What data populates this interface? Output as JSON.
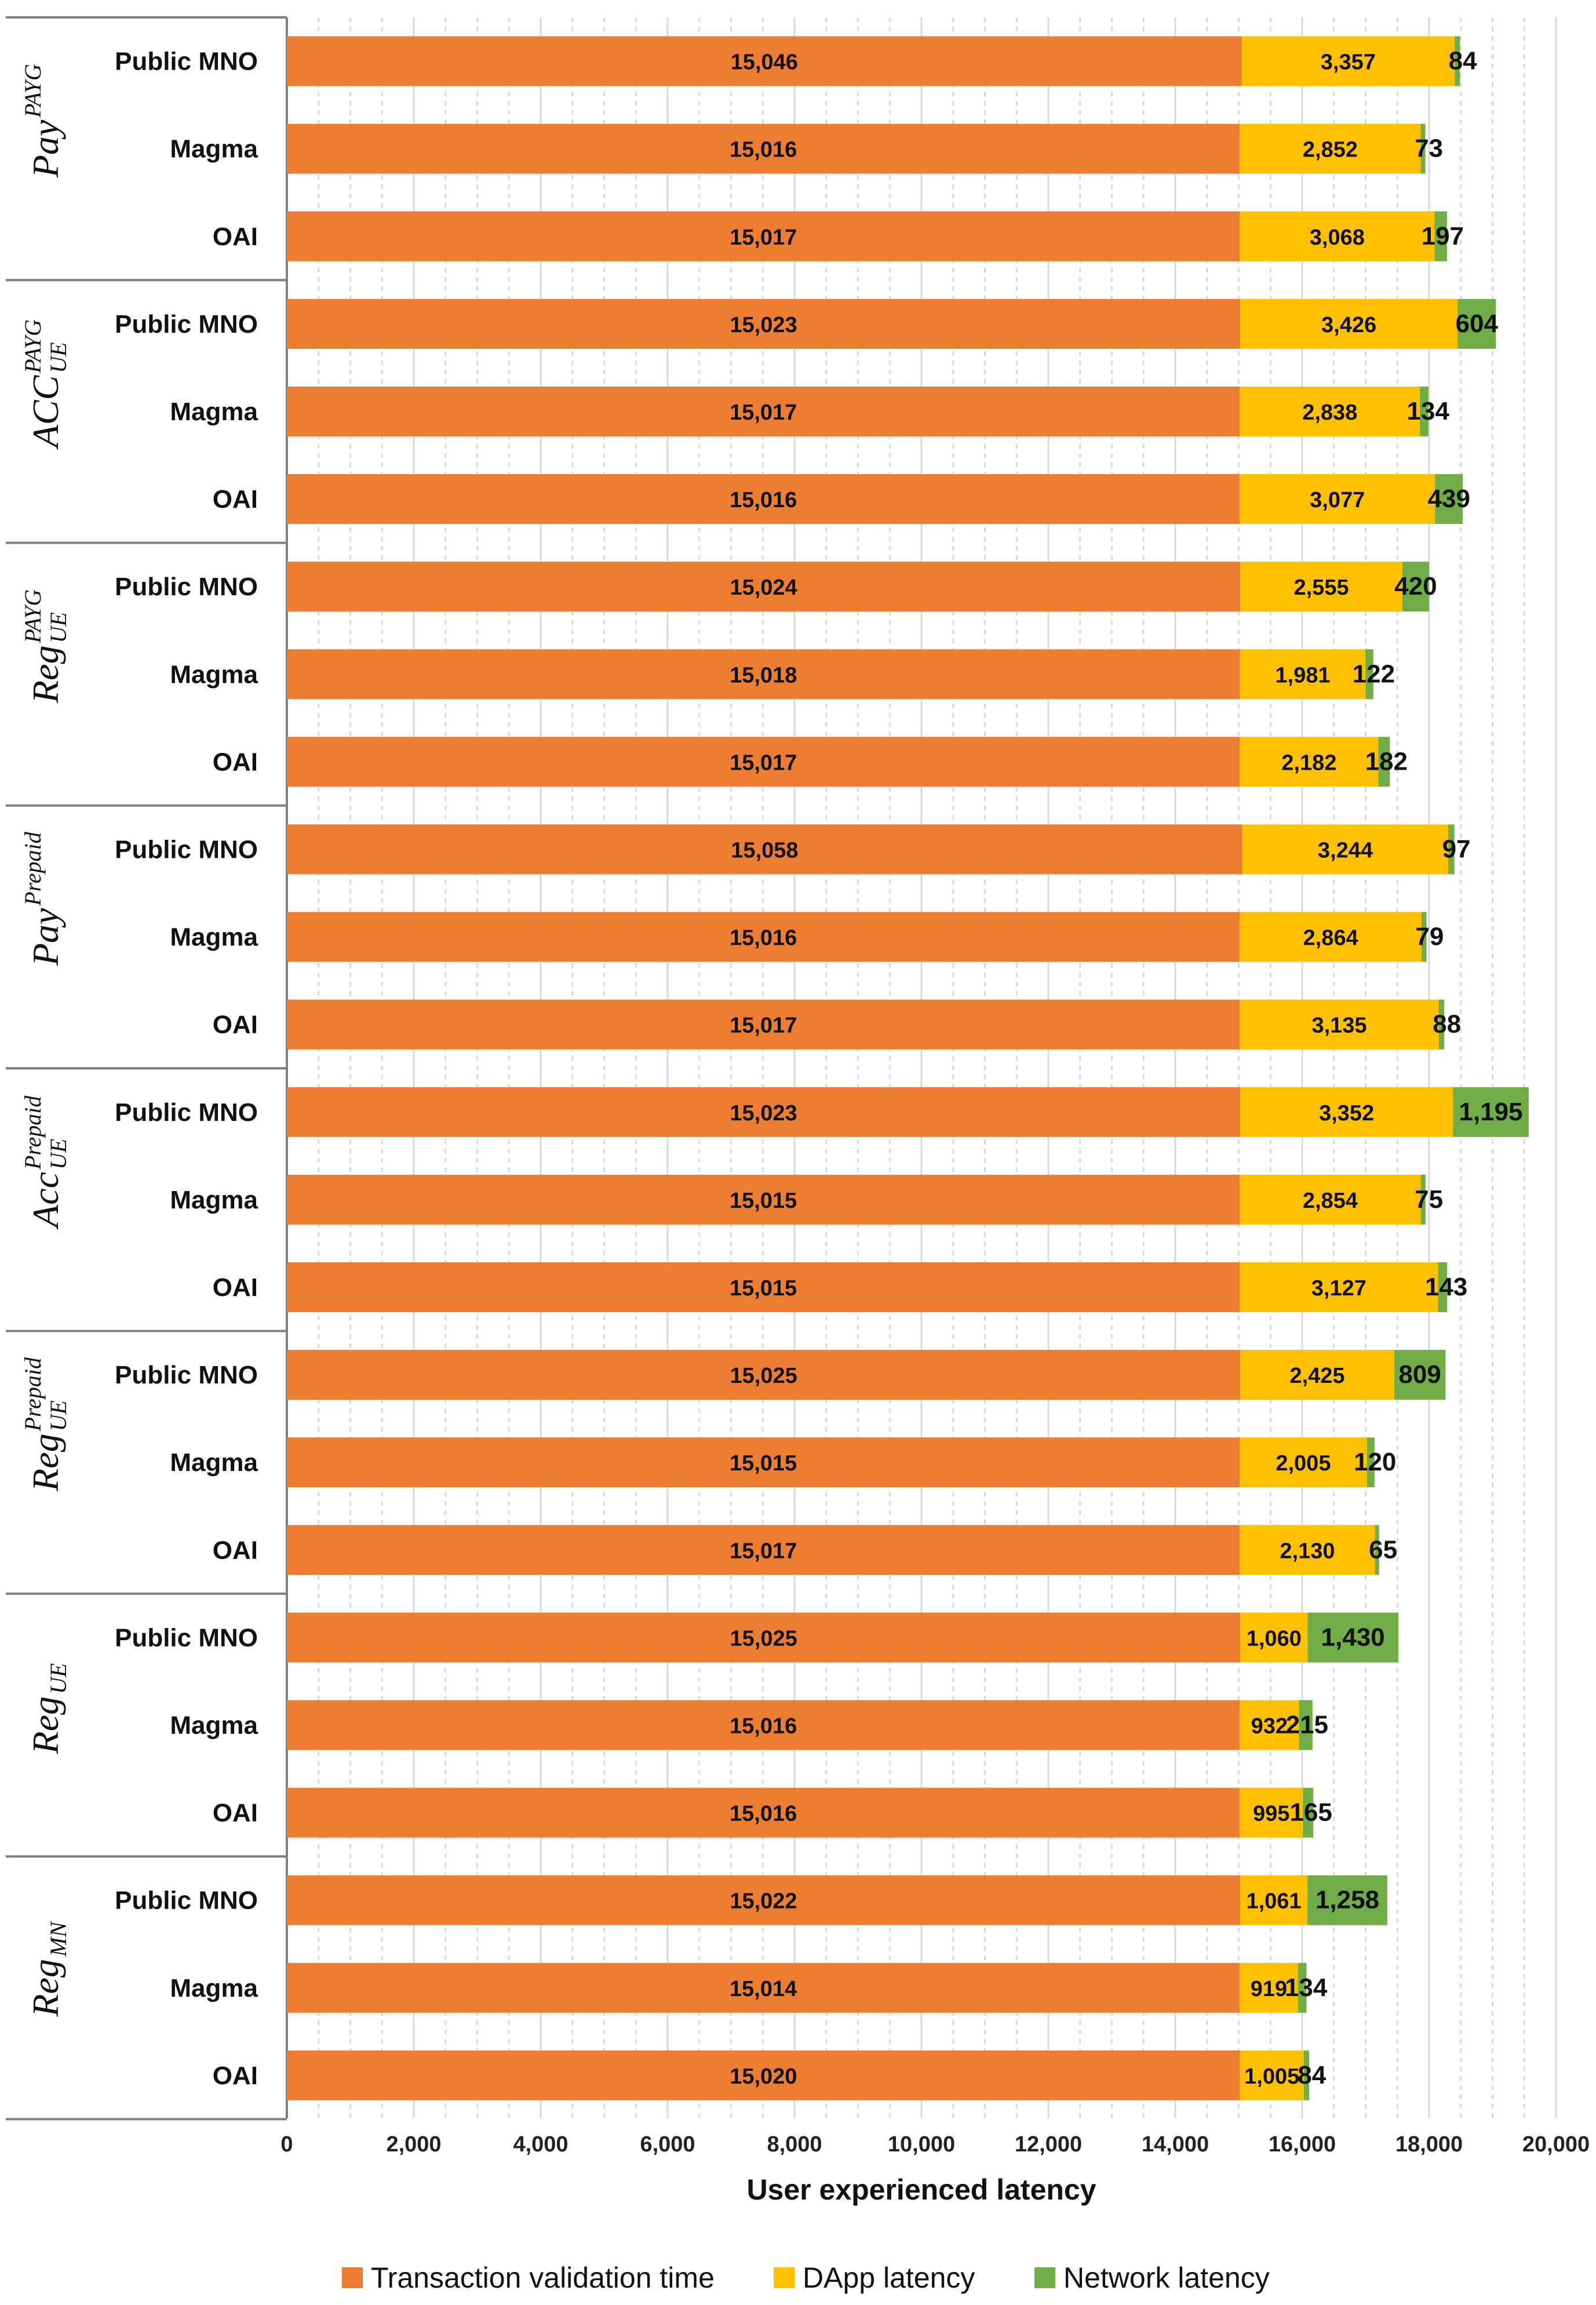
{
  "chart_data": {
    "type": "bar",
    "orientation": "horizontal",
    "stacked": true,
    "xlabel": "User experienced latency",
    "xlim": [
      0,
      20000
    ],
    "xticks": [
      "0",
      "2,000",
      "4,000",
      "6,000",
      "8,000",
      "10,000",
      "12,000",
      "14,000",
      "16,000",
      "18,000",
      "20,000"
    ],
    "legend_position": "bottom",
    "series": [
      {
        "name": "Transaction validation time",
        "color": "#ED7D31"
      },
      {
        "name": "DApp latency",
        "color": "#FFC000"
      },
      {
        "name": "Network latency",
        "color": "#70AD47"
      }
    ],
    "groups": [
      {
        "label": "Pay",
        "sup": "PAYG",
        "sub": "",
        "bars": [
          {
            "category": "Public MNO",
            "values": [
              15046,
              3357,
              84
            ],
            "labels": [
              "15,046",
              "3,357",
              "84"
            ]
          },
          {
            "category": "Magma",
            "values": [
              15016,
              2852,
              73
            ],
            "labels": [
              "15,016",
              "2,852",
              "73"
            ]
          },
          {
            "category": "OAI",
            "values": [
              15017,
              3068,
              197
            ],
            "labels": [
              "15,017",
              "3,068",
              "197"
            ]
          }
        ]
      },
      {
        "label": "ACC",
        "sup": "PAYG",
        "sub": "UE",
        "bars": [
          {
            "category": "Public MNO",
            "values": [
              15023,
              3426,
              604
            ],
            "labels": [
              "15,023",
              "3,426",
              "604"
            ]
          },
          {
            "category": "Magma",
            "values": [
              15017,
              2838,
              134
            ],
            "labels": [
              "15,017",
              "2,838",
              "134"
            ]
          },
          {
            "category": "OAI",
            "values": [
              15016,
              3077,
              439
            ],
            "labels": [
              "15,016",
              "3,077",
              "439"
            ]
          }
        ]
      },
      {
        "label": "Reg",
        "sup": "PAYG",
        "sub": "UE",
        "bars": [
          {
            "category": "Public MNO",
            "values": [
              15024,
              2555,
              420
            ],
            "labels": [
              "15,024",
              "2,555",
              "420"
            ]
          },
          {
            "category": "Magma",
            "values": [
              15018,
              1981,
              122
            ],
            "labels": [
              "15,018",
              "1,981",
              "122"
            ]
          },
          {
            "category": "OAI",
            "values": [
              15017,
              2182,
              182
            ],
            "labels": [
              "15,017",
              "2,182",
              "182"
            ]
          }
        ]
      },
      {
        "label": "Pay",
        "sup": "Prepaid",
        "sub": "",
        "bars": [
          {
            "category": "Public MNO",
            "values": [
              15058,
              3244,
              97
            ],
            "labels": [
              "15,058",
              "3,244",
              "97"
            ]
          },
          {
            "category": "Magma",
            "values": [
              15016,
              2864,
              79
            ],
            "labels": [
              "15,016",
              "2,864",
              "79"
            ]
          },
          {
            "category": "OAI",
            "values": [
              15017,
              3135,
              88
            ],
            "labels": [
              "15,017",
              "3,135",
              "88"
            ]
          }
        ]
      },
      {
        "label": "Acc",
        "sup": "Prepaid",
        "sub": "UE",
        "bars": [
          {
            "category": "Public MNO",
            "values": [
              15023,
              3352,
              1195
            ],
            "labels": [
              "15,023",
              "3,352",
              "1,195"
            ]
          },
          {
            "category": "Magma",
            "values": [
              15015,
              2854,
              75
            ],
            "labels": [
              "15,015",
              "2,854",
              "75"
            ]
          },
          {
            "category": "OAI",
            "values": [
              15015,
              3127,
              143
            ],
            "labels": [
              "15,015",
              "3,127",
              "143"
            ]
          }
        ]
      },
      {
        "label": "Reg",
        "sup": "Prepaid",
        "sub": "UE",
        "bars": [
          {
            "category": "Public MNO",
            "values": [
              15025,
              2425,
              809
            ],
            "labels": [
              "15,025",
              "2,425",
              "809"
            ]
          },
          {
            "category": "Magma",
            "values": [
              15015,
              2005,
              120
            ],
            "labels": [
              "15,015",
              "2,005",
              "120"
            ]
          },
          {
            "category": "OAI",
            "values": [
              15017,
              2130,
              65
            ],
            "labels": [
              "15,017",
              "2,130",
              "65"
            ]
          }
        ]
      },
      {
        "label": "Reg",
        "sup": "",
        "sub": "UE",
        "bars": [
          {
            "category": "Public MNO",
            "values": [
              15025,
              1060,
              1430
            ],
            "labels": [
              "15,025",
              "1,060",
              "1,430"
            ]
          },
          {
            "category": "Magma",
            "values": [
              15016,
              932,
              215
            ],
            "labels": [
              "15,016",
              "932",
              "215"
            ]
          },
          {
            "category": "OAI",
            "values": [
              15016,
              995,
              165
            ],
            "labels": [
              "15,016",
              "995",
              "165"
            ]
          }
        ]
      },
      {
        "label": "Reg",
        "sup": "",
        "sub": "MN",
        "bars": [
          {
            "category": "Public MNO",
            "values": [
              15022,
              1061,
              1258
            ],
            "labels": [
              "15,022",
              "1,061",
              "1,258"
            ]
          },
          {
            "category": "Magma",
            "values": [
              15014,
              919,
              134
            ],
            "labels": [
              "15,014",
              "919",
              "134"
            ]
          },
          {
            "category": "OAI",
            "values": [
              15020,
              1005,
              84
            ],
            "labels": [
              "15,020",
              "1,005",
              "84"
            ]
          }
        ]
      }
    ]
  }
}
